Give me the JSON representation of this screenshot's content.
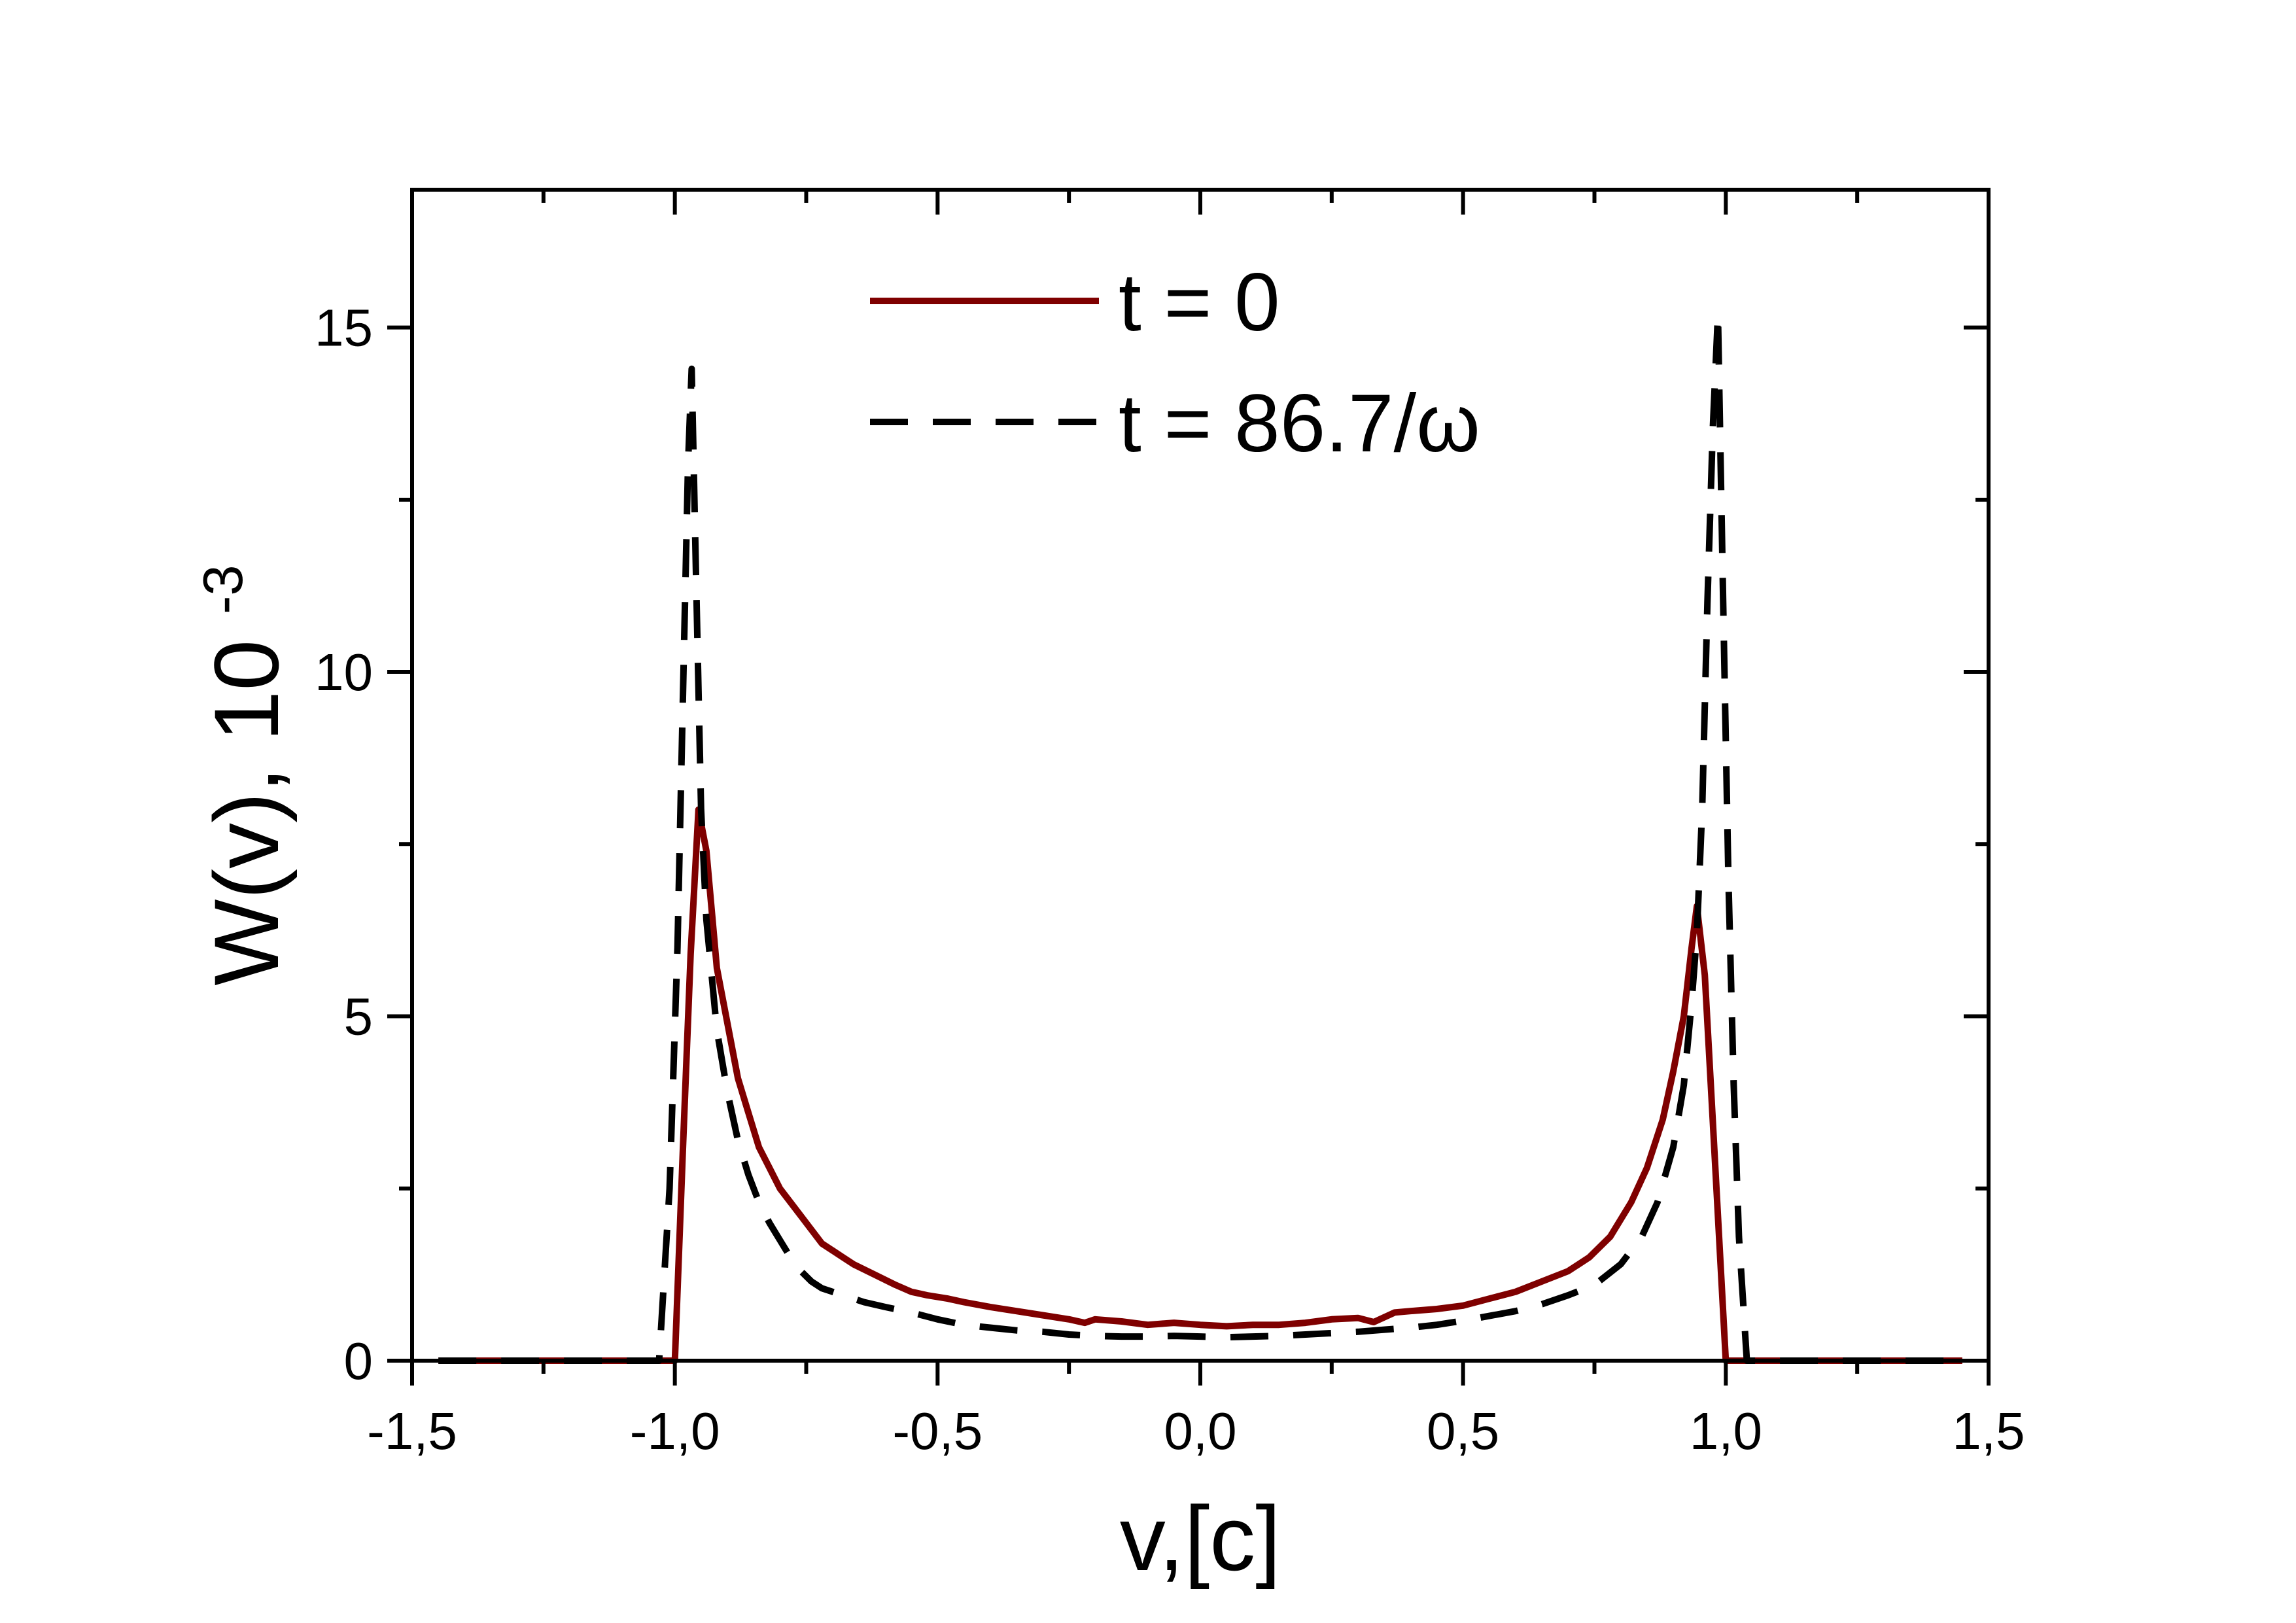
{
  "chart_data": {
    "type": "line",
    "title": "",
    "xlabel": "v,[c]",
    "ylabel_main": "W(v), 10",
    "ylabel_exponent": "-3",
    "xlim": [
      -1.5,
      1.5
    ],
    "ylim": [
      0,
      17
    ],
    "x_ticks": [
      -1.5,
      -1.0,
      -0.5,
      0.0,
      0.5,
      1.0,
      1.5
    ],
    "x_tick_labels": [
      "-1,5",
      "-1,0",
      "-0,5",
      "0,0",
      "0,5",
      "1,0",
      "1,5"
    ],
    "y_ticks": [
      0,
      5,
      10,
      15
    ],
    "y_tick_labels": [
      "0",
      "5",
      "10",
      "15"
    ],
    "grid": false,
    "legend_position": "top-center",
    "series": [
      {
        "name": "t = 0",
        "style": "solid",
        "color": "#7f0000",
        "points": [
          [
            -1.45,
            0
          ],
          [
            -1.02,
            0
          ],
          [
            -1.0,
            0
          ],
          [
            -0.985,
            3.0
          ],
          [
            -0.97,
            5.9
          ],
          [
            -0.955,
            8.0
          ],
          [
            -0.94,
            7.4
          ],
          [
            -0.92,
            5.7
          ],
          [
            -0.9,
            4.9
          ],
          [
            -0.88,
            4.1
          ],
          [
            -0.86,
            3.6
          ],
          [
            -0.84,
            3.1
          ],
          [
            -0.82,
            2.8
          ],
          [
            -0.8,
            2.5
          ],
          [
            -0.78,
            2.3
          ],
          [
            -0.76,
            2.1
          ],
          [
            -0.74,
            1.9
          ],
          [
            -0.72,
            1.7
          ],
          [
            -0.7,
            1.6
          ],
          [
            -0.68,
            1.5
          ],
          [
            -0.66,
            1.4
          ],
          [
            -0.62,
            1.25
          ],
          [
            -0.58,
            1.1
          ],
          [
            -0.55,
            1.0
          ],
          [
            -0.52,
            0.95
          ],
          [
            -0.48,
            0.9
          ],
          [
            -0.45,
            0.85
          ],
          [
            -0.4,
            0.78
          ],
          [
            -0.35,
            0.72
          ],
          [
            -0.3,
            0.66
          ],
          [
            -0.25,
            0.6
          ],
          [
            -0.22,
            0.55
          ],
          [
            -0.2,
            0.6
          ],
          [
            -0.15,
            0.57
          ],
          [
            -0.1,
            0.52
          ],
          [
            -0.05,
            0.55
          ],
          [
            0.0,
            0.52
          ],
          [
            0.05,
            0.5
          ],
          [
            0.1,
            0.52
          ],
          [
            0.15,
            0.52
          ],
          [
            0.2,
            0.55
          ],
          [
            0.25,
            0.6
          ],
          [
            0.3,
            0.62
          ],
          [
            0.33,
            0.56
          ],
          [
            0.37,
            0.7
          ],
          [
            0.4,
            0.72
          ],
          [
            0.45,
            0.75
          ],
          [
            0.5,
            0.8
          ],
          [
            0.55,
            0.9
          ],
          [
            0.6,
            1.0
          ],
          [
            0.65,
            1.15
          ],
          [
            0.7,
            1.3
          ],
          [
            0.74,
            1.5
          ],
          [
            0.78,
            1.8
          ],
          [
            0.82,
            2.3
          ],
          [
            0.85,
            2.8
          ],
          [
            0.88,
            3.5
          ],
          [
            0.9,
            4.2
          ],
          [
            0.92,
            5.0
          ],
          [
            0.935,
            6.0
          ],
          [
            0.945,
            6.6
          ],
          [
            0.96,
            5.6
          ],
          [
            0.975,
            3.5
          ],
          [
            0.99,
            1.4
          ],
          [
            1.0,
            0
          ],
          [
            1.02,
            0
          ],
          [
            1.45,
            0
          ]
        ]
      },
      {
        "name": "t = 86.7/ω",
        "style": "dashed",
        "color": "#000000",
        "points": [
          [
            -1.45,
            0
          ],
          [
            -1.05,
            0
          ],
          [
            -1.03,
            0
          ],
          [
            -1.01,
            2.5
          ],
          [
            -0.995,
            6.0
          ],
          [
            -0.985,
            9.5
          ],
          [
            -0.975,
            13.0
          ],
          [
            -0.968,
            14.4
          ],
          [
            -0.96,
            11.5
          ],
          [
            -0.95,
            8.0
          ],
          [
            -0.94,
            6.4
          ],
          [
            -0.92,
            4.8
          ],
          [
            -0.9,
            3.9
          ],
          [
            -0.88,
            3.2
          ],
          [
            -0.86,
            2.7
          ],
          [
            -0.84,
            2.3
          ],
          [
            -0.82,
            2.0
          ],
          [
            -0.8,
            1.75
          ],
          [
            -0.78,
            1.5
          ],
          [
            -0.76,
            1.3
          ],
          [
            -0.74,
            1.15
          ],
          [
            -0.72,
            1.05
          ],
          [
            -0.68,
            0.95
          ],
          [
            -0.64,
            0.85
          ],
          [
            -0.6,
            0.78
          ],
          [
            -0.55,
            0.7
          ],
          [
            -0.5,
            0.6
          ],
          [
            -0.45,
            0.52
          ],
          [
            -0.4,
            0.48
          ],
          [
            -0.35,
            0.44
          ],
          [
            -0.3,
            0.42
          ],
          [
            -0.25,
            0.38
          ],
          [
            -0.2,
            0.36
          ],
          [
            -0.15,
            0.35
          ],
          [
            -0.1,
            0.35
          ],
          [
            -0.05,
            0.36
          ],
          [
            0.0,
            0.35
          ],
          [
            0.05,
            0.34
          ],
          [
            0.1,
            0.35
          ],
          [
            0.15,
            0.36
          ],
          [
            0.2,
            0.38
          ],
          [
            0.25,
            0.4
          ],
          [
            0.3,
            0.42
          ],
          [
            0.35,
            0.45
          ],
          [
            0.4,
            0.48
          ],
          [
            0.45,
            0.52
          ],
          [
            0.5,
            0.58
          ],
          [
            0.55,
            0.65
          ],
          [
            0.6,
            0.72
          ],
          [
            0.65,
            0.82
          ],
          [
            0.7,
            0.95
          ],
          [
            0.75,
            1.1
          ],
          [
            0.8,
            1.4
          ],
          [
            0.84,
            1.8
          ],
          [
            0.87,
            2.3
          ],
          [
            0.9,
            3.1
          ],
          [
            0.92,
            4.0
          ],
          [
            0.935,
            5.2
          ],
          [
            0.945,
            6.2
          ],
          [
            0.955,
            8.0
          ],
          [
            0.965,
            11.0
          ],
          [
            0.975,
            13.5
          ],
          [
            0.985,
            15.2
          ],
          [
            0.995,
            11.0
          ],
          [
            1.005,
            7.0
          ],
          [
            1.015,
            4.0
          ],
          [
            1.025,
            1.8
          ],
          [
            1.04,
            0
          ],
          [
            1.06,
            0
          ],
          [
            1.45,
            0
          ]
        ]
      }
    ]
  }
}
